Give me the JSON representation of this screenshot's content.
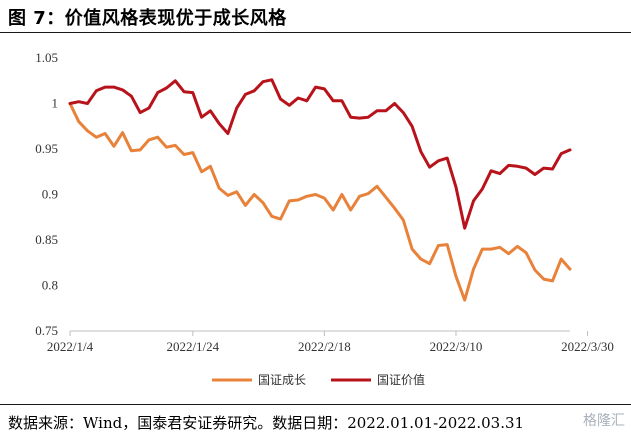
{
  "figure": {
    "title": "图 7：价值风格表现优于成长风格",
    "source": "数据来源：Wind，国泰君安证券研究。数据日期：2022.01.01-2022.03.31",
    "watermark": "格隆汇"
  },
  "chart_data": {
    "type": "line",
    "title": "",
    "xlabel": "",
    "ylabel": "",
    "ylim": [
      0.75,
      1.05
    ],
    "yticks": [
      "0.75",
      "0.8",
      "0.85",
      "0.9",
      "0.95",
      "1",
      "1.05"
    ],
    "xtick_labels": [
      "2022/1/4",
      "2022/1/24",
      "2022/2/18",
      "2022/3/10",
      "2022/3/30"
    ],
    "xtick_index": [
      0,
      14,
      29,
      44,
      59
    ],
    "grid": false,
    "legend": "bottom-center",
    "series": [
      {
        "name": "国证成长",
        "color": "#E8823A",
        "values": [
          1.0,
          0.98,
          0.97,
          0.963,
          0.967,
          0.953,
          0.968,
          0.948,
          0.949,
          0.96,
          0.963,
          0.952,
          0.954,
          0.944,
          0.946,
          0.925,
          0.931,
          0.907,
          0.899,
          0.903,
          0.888,
          0.9,
          0.891,
          0.876,
          0.873,
          0.893,
          0.894,
          0.898,
          0.9,
          0.896,
          0.883,
          0.9,
          0.883,
          0.898,
          0.901,
          0.909,
          0.897,
          0.885,
          0.872,
          0.84,
          0.829,
          0.824,
          0.844,
          0.845,
          0.81,
          0.784,
          0.818,
          0.84,
          0.84,
          0.842,
          0.835,
          0.843,
          0.836,
          0.817,
          0.807,
          0.805,
          0.829,
          0.818
        ]
      },
      {
        "name": "国证价值",
        "color": "#B8121B",
        "values": [
          1.0,
          1.002,
          1.0,
          1.014,
          1.018,
          1.018,
          1.015,
          1.008,
          0.99,
          0.995,
          1.012,
          1.017,
          1.025,
          1.013,
          1.012,
          0.985,
          0.992,
          0.978,
          0.967,
          0.995,
          1.01,
          1.014,
          1.024,
          1.026,
          1.005,
          0.998,
          1.006,
          1.003,
          1.018,
          1.016,
          1.003,
          1.003,
          0.985,
          0.984,
          0.985,
          0.992,
          0.992,
          1.0,
          0.99,
          0.975,
          0.947,
          0.93,
          0.937,
          0.94,
          0.908,
          0.863,
          0.893,
          0.906,
          0.926,
          0.923,
          0.932,
          0.931,
          0.929,
          0.922,
          0.929,
          0.928,
          0.945,
          0.949
        ]
      }
    ]
  }
}
